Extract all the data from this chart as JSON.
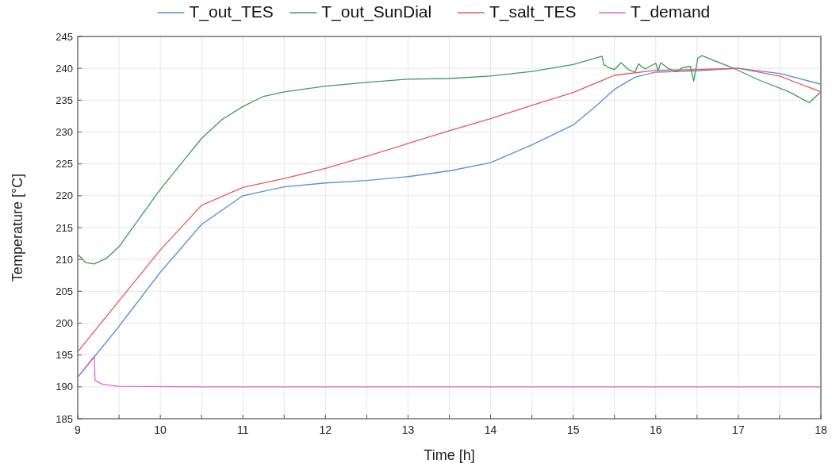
{
  "chart_data": {
    "type": "line",
    "xlabel": "Time [h]",
    "ylabel": "Temperature [°C]",
    "xlim": [
      9,
      18
    ],
    "xticks": [
      9,
      {
        "value": 9.5,
        "label": null
      },
      10,
      {
        "value": 10.5,
        "label": null
      },
      11,
      {
        "value": 11.5,
        "label": null
      },
      12,
      {
        "value": 12.5,
        "label": null
      },
      13,
      {
        "value": 13.5,
        "label": null
      },
      14,
      {
        "value": 14.5,
        "label": null
      },
      15,
      {
        "value": 15.5,
        "label": null
      },
      16,
      {
        "value": 16.5,
        "label": null
      },
      17,
      {
        "value": 17.5,
        "label": null
      },
      18
    ],
    "ylim": [
      185,
      245
    ],
    "yticks": [
      185,
      190,
      195,
      200,
      205,
      210,
      215,
      220,
      225,
      230,
      235,
      240,
      245
    ],
    "grid": true,
    "legend": "top",
    "marker": "none",
    "line_style": "solid",
    "series": [
      {
        "name": "T_out_TES",
        "color": "#5b8fd9",
        "x": [
          9,
          9.5,
          10,
          10.5,
          11,
          11.5,
          12,
          12.5,
          13,
          13.5,
          14,
          14.5,
          15,
          15.25,
          15.5,
          15.75,
          16,
          16.5,
          17,
          17.5,
          18
        ],
        "values": [
          191.5,
          199.5,
          208,
          215.5,
          220,
          221.4,
          222,
          222.4,
          223,
          223.9,
          225.2,
          228,
          231.1,
          233.8,
          236.7,
          238.6,
          239.4,
          239.6,
          240,
          239.2,
          237.5
        ]
      },
      {
        "name": "T_out_SunDial",
        "color": "#3a9a66",
        "x": [
          9,
          9.1,
          9.2,
          9.35,
          9.5,
          9.75,
          10,
          10.25,
          10.5,
          10.75,
          11,
          11.25,
          11.5,
          12,
          12.5,
          13,
          13.5,
          14,
          14.5,
          15,
          15.35,
          15.37,
          15.42,
          15.5,
          15.58,
          15.67,
          15.75,
          15.79,
          15.87,
          16.0,
          16.03,
          16.06,
          16.16,
          16.26,
          16.32,
          16.42,
          16.46,
          16.51,
          16.56,
          16.67,
          16.96,
          17.28,
          17.6,
          17.86,
          17.99
        ],
        "values": [
          210.8,
          209.5,
          209.3,
          210.2,
          212,
          216.5,
          221,
          225,
          229,
          232,
          234,
          235.6,
          236.3,
          237.2,
          237.8,
          238.3,
          238.4,
          238.8,
          239.5,
          240.6,
          241.9,
          240.6,
          240.2,
          239.8,
          240.9,
          239.8,
          239.4,
          240.7,
          239.9,
          240.8,
          239.6,
          240.9,
          239.9,
          239.5,
          240.1,
          240.3,
          238,
          241.6,
          242,
          241.4,
          239.9,
          238,
          236.4,
          234.6,
          236.2
        ]
      },
      {
        "name": "T_salt_TES",
        "color": "#e8585a",
        "x": [
          9,
          9.5,
          10,
          10.5,
          11,
          11.5,
          12,
          12.5,
          13,
          13.5,
          14,
          14.5,
          15,
          15.5,
          16,
          16.5,
          17,
          17.5,
          18
        ],
        "values": [
          195.5,
          203.5,
          211.5,
          218.5,
          221.3,
          222.7,
          224.3,
          226.2,
          228.2,
          230.2,
          232.1,
          234.2,
          236.2,
          238.9,
          239.7,
          239.8,
          240,
          238.8,
          236.3
        ]
      },
      {
        "name": "T_demand",
        "color": "#d968d6",
        "x": [
          9,
          9.1,
          9.2,
          9.21,
          9.3,
          9.5,
          10.5,
          18
        ],
        "values": [
          191.5,
          193.2,
          194.8,
          191,
          190.4,
          190.1,
          190,
          190
        ]
      }
    ]
  }
}
